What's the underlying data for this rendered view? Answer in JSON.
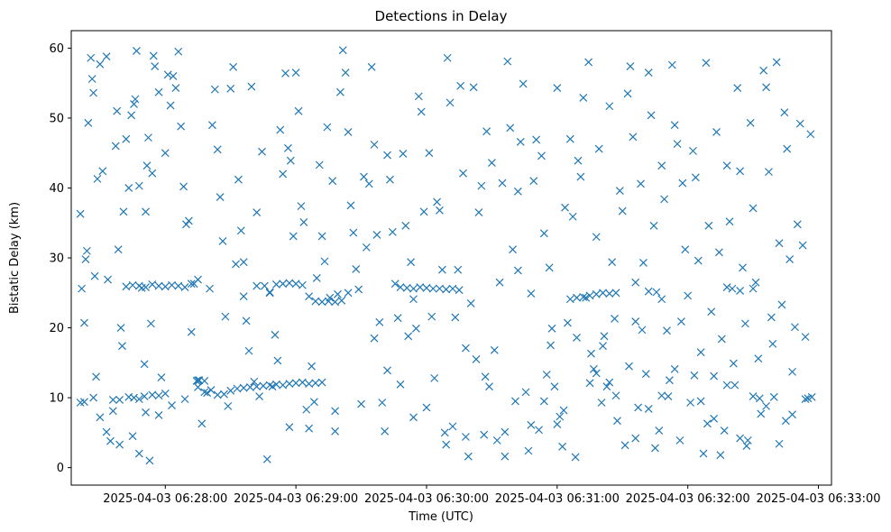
{
  "chart_data": {
    "type": "scatter",
    "title": "Detections in Delay",
    "xlabel": "Time (UTC)",
    "ylabel": "Bistatic Delay (km)",
    "marker": "x",
    "marker_color": "#1f77b4",
    "x_unit": "minutes after 2025-04-03 06:27:00 UTC",
    "xlim": [
      0.28,
      6.1
    ],
    "ylim": [
      -2.5,
      62.5
    ],
    "x_ticks": [
      {
        "value": 1,
        "label": "2025-04-03 06:28:00"
      },
      {
        "value": 2,
        "label": "2025-04-03 06:29:00"
      },
      {
        "value": 3,
        "label": "2025-04-03 06:30:00"
      },
      {
        "value": 4,
        "label": "2025-04-03 06:31:00"
      },
      {
        "value": 5,
        "label": "2025-04-03 06:32:00"
      },
      {
        "value": 6,
        "label": "2025-04-03 06:33:00"
      }
    ],
    "y_ticks": [
      {
        "value": 0,
        "label": "0"
      },
      {
        "value": 10,
        "label": "10"
      },
      {
        "value": 20,
        "label": "20"
      },
      {
        "value": 30,
        "label": "30"
      },
      {
        "value": 40,
        "label": "40"
      },
      {
        "value": 50,
        "label": "50"
      },
      {
        "value": 60,
        "label": "60"
      }
    ],
    "points": [
      [
        0.35,
        36.3
      ],
      [
        0.36,
        25.6
      ],
      [
        0.38,
        20.7
      ],
      [
        0.39,
        29.8
      ],
      [
        0.4,
        31
      ],
      [
        0.41,
        49.3
      ],
      [
        0.43,
        58.6
      ],
      [
        0.44,
        55.6
      ],
      [
        0.45,
        53.6
      ],
      [
        0.46,
        27.4
      ],
      [
        0.47,
        13
      ],
      [
        0.48,
        41.3
      ],
      [
        0.5,
        57.7
      ],
      [
        0.52,
        42.4
      ],
      [
        0.55,
        58.8
      ],
      [
        0.56,
        26.9
      ],
      [
        0.58,
        3.8
      ],
      [
        0.6,
        9.7
      ],
      [
        0.62,
        46
      ],
      [
        0.63,
        51
      ],
      [
        0.64,
        31.2
      ],
      [
        0.65,
        3.3
      ],
      [
        0.66,
        20
      ],
      [
        0.67,
        17.4
      ],
      [
        0.68,
        36.6
      ],
      [
        0.7,
        47
      ],
      [
        0.72,
        40
      ],
      [
        0.74,
        50.4
      ],
      [
        0.76,
        52
      ],
      [
        0.77,
        52.7
      ],
      [
        0.78,
        59.6
      ],
      [
        0.8,
        40.3
      ],
      [
        0.82,
        25.7
      ],
      [
        0.84,
        14.8
      ],
      [
        0.85,
        36.6
      ],
      [
        0.86,
        43.2
      ],
      [
        0.87,
        47.2
      ],
      [
        0.88,
        1
      ],
      [
        0.89,
        20.6
      ],
      [
        0.9,
        42.1
      ],
      [
        0.91,
        58.9
      ],
      [
        0.92,
        57.4
      ],
      [
        0.95,
        53.7
      ],
      [
        0.97,
        12.9
      ],
      [
        1.0,
        45
      ],
      [
        1.02,
        56.2
      ],
      [
        1.04,
        51.8
      ],
      [
        1.06,
        56
      ],
      [
        1.08,
        54.3
      ],
      [
        1.1,
        59.5
      ],
      [
        1.12,
        48.8
      ],
      [
        1.14,
        40.2
      ],
      [
        1.16,
        34.8
      ],
      [
        1.18,
        35.3
      ],
      [
        1.2,
        19.4
      ],
      [
        1.22,
        26.3
      ],
      [
        1.24,
        12.4
      ],
      [
        1.26,
        12.5
      ],
      [
        1.28,
        6.3
      ],
      [
        1.3,
        10.8
      ],
      [
        1.32,
        10.7
      ],
      [
        1.34,
        25.6
      ],
      [
        1.36,
        49
      ],
      [
        1.38,
        54.1
      ],
      [
        1.4,
        45.5
      ],
      [
        1.42,
        38.7
      ],
      [
        1.44,
        32.4
      ],
      [
        1.46,
        21.6
      ],
      [
        1.48,
        8.8
      ],
      [
        1.5,
        54.2
      ],
      [
        1.52,
        57.3
      ],
      [
        1.54,
        29.1
      ],
      [
        1.56,
        41.2
      ],
      [
        1.58,
        33.9
      ],
      [
        1.6,
        24.5
      ],
      [
        1.62,
        21
      ],
      [
        1.64,
        16.7
      ],
      [
        1.66,
        54.5
      ],
      [
        1.68,
        12.3
      ],
      [
        1.7,
        36.5
      ],
      [
        1.72,
        10.2
      ],
      [
        1.74,
        45.2
      ],
      [
        1.76,
        26
      ],
      [
        1.78,
        1.2
      ],
      [
        1.8,
        25.1
      ],
      [
        1.82,
        11.6
      ],
      [
        1.84,
        19
      ],
      [
        1.86,
        15.3
      ],
      [
        1.88,
        48.3
      ],
      [
        1.9,
        42
      ],
      [
        1.92,
        56.4
      ],
      [
        1.94,
        45.7
      ],
      [
        1.96,
        43.9
      ],
      [
        1.98,
        33.1
      ],
      [
        2.0,
        56.5
      ],
      [
        2.02,
        51
      ],
      [
        2.04,
        37.4
      ],
      [
        2.06,
        35.1
      ],
      [
        2.08,
        8.3
      ],
      [
        2.1,
        5.6
      ],
      [
        2.12,
        14.5
      ],
      [
        2.14,
        9.4
      ],
      [
        2.16,
        27.1
      ],
      [
        2.18,
        43.3
      ],
      [
        2.2,
        33.1
      ],
      [
        2.22,
        29.5
      ],
      [
        2.24,
        48.7
      ],
      [
        2.26,
        24.3
      ],
      [
        2.28,
        41
      ],
      [
        2.3,
        5.2
      ],
      [
        2.32,
        24.8
      ],
      [
        2.34,
        53.7
      ],
      [
        2.36,
        59.7
      ],
      [
        2.38,
        56.5
      ],
      [
        2.4,
        48
      ],
      [
        2.42,
        37.5
      ],
      [
        2.44,
        33.6
      ],
      [
        2.46,
        28.4
      ],
      [
        2.48,
        25.5
      ],
      [
        2.5,
        9.1
      ],
      [
        2.52,
        41.6
      ],
      [
        2.54,
        31.5
      ],
      [
        2.56,
        40.6
      ],
      [
        2.58,
        57.3
      ],
      [
        2.6,
        46.2
      ],
      [
        2.62,
        33.3
      ],
      [
        2.64,
        20.8
      ],
      [
        2.66,
        9.3
      ],
      [
        2.68,
        5.2
      ],
      [
        2.7,
        44.7
      ],
      [
        2.72,
        41.2
      ],
      [
        2.74,
        33.7
      ],
      [
        2.76,
        26.3
      ],
      [
        2.78,
        21.4
      ],
      [
        2.8,
        11.9
      ],
      [
        2.82,
        44.9
      ],
      [
        2.84,
        34.6
      ],
      [
        2.86,
        18.8
      ],
      [
        2.88,
        29.4
      ],
      [
        2.9,
        24.1
      ],
      [
        2.92,
        19.9
      ],
      [
        2.94,
        53.1
      ],
      [
        2.96,
        50.9
      ],
      [
        2.98,
        36.6
      ],
      [
        3.0,
        8.6
      ],
      [
        3.02,
        45
      ],
      [
        3.04,
        21.6
      ],
      [
        3.06,
        12.8
      ],
      [
        3.08,
        38
      ],
      [
        3.1,
        36.8
      ],
      [
        3.12,
        28.3
      ],
      [
        3.14,
        5
      ],
      [
        3.16,
        58.6
      ],
      [
        3.18,
        52.2
      ],
      [
        3.2,
        5.9
      ],
      [
        3.22,
        21.5
      ],
      [
        3.24,
        28.3
      ],
      [
        3.26,
        54.6
      ],
      [
        3.28,
        42.1
      ],
      [
        3.3,
        4.4
      ],
      [
        3.32,
        1.6
      ],
      [
        3.34,
        23.5
      ],
      [
        3.36,
        54.4
      ],
      [
        3.38,
        15.5
      ],
      [
        3.4,
        36.5
      ],
      [
        3.42,
        40.3
      ],
      [
        3.44,
        4.7
      ],
      [
        3.46,
        48.1
      ],
      [
        3.48,
        11.6
      ],
      [
        3.5,
        43.6
      ],
      [
        3.52,
        16.8
      ],
      [
        3.54,
        3.9
      ],
      [
        3.56,
        26.5
      ],
      [
        3.58,
        40.7
      ],
      [
        3.6,
        5.1
      ],
      [
        3.62,
        58.1
      ],
      [
        3.64,
        48.6
      ],
      [
        3.66,
        31.2
      ],
      [
        3.68,
        9.5
      ],
      [
        3.7,
        39.5
      ],
      [
        3.72,
        46.6
      ],
      [
        3.74,
        54.9
      ],
      [
        3.76,
        10.8
      ],
      [
        3.78,
        2.4
      ],
      [
        3.8,
        24.9
      ],
      [
        3.82,
        41
      ],
      [
        3.84,
        46.9
      ],
      [
        3.86,
        5.4
      ],
      [
        3.88,
        44.6
      ],
      [
        3.9,
        33.5
      ],
      [
        3.92,
        13.3
      ],
      [
        3.94,
        28.6
      ],
      [
        3.96,
        19.9
      ],
      [
        3.98,
        11.6
      ],
      [
        4.0,
        54.3
      ],
      [
        4.02,
        7.3
      ],
      [
        4.04,
        3
      ],
      [
        4.06,
        37.2
      ],
      [
        4.08,
        20.7
      ],
      [
        4.1,
        47
      ],
      [
        4.12,
        35.9
      ],
      [
        4.14,
        1.5
      ],
      [
        4.16,
        43.9
      ],
      [
        4.18,
        41.6
      ],
      [
        4.2,
        52.9
      ],
      [
        4.22,
        24.3
      ],
      [
        4.24,
        58
      ],
      [
        4.26,
        16.3
      ],
      [
        4.28,
        14.1
      ],
      [
        4.3,
        33
      ],
      [
        4.32,
        45.6
      ],
      [
        4.34,
        9.3
      ],
      [
        4.36,
        18.8
      ],
      [
        4.38,
        11.6
      ],
      [
        4.4,
        51.7
      ],
      [
        4.42,
        29.4
      ],
      [
        4.44,
        21.3
      ],
      [
        4.46,
        6.7
      ],
      [
        4.48,
        39.6
      ],
      [
        4.5,
        36.7
      ],
      [
        4.52,
        3.2
      ],
      [
        4.54,
        53.5
      ],
      [
        4.56,
        57.4
      ],
      [
        4.58,
        47.3
      ],
      [
        4.6,
        20.9
      ],
      [
        4.62,
        8.6
      ],
      [
        4.64,
        40.6
      ],
      [
        4.66,
        29.3
      ],
      [
        4.68,
        13.4
      ],
      [
        4.7,
        56.5
      ],
      [
        4.72,
        50.4
      ],
      [
        4.74,
        34.6
      ],
      [
        4.76,
        25.1
      ],
      [
        4.78,
        5.3
      ],
      [
        4.8,
        43.2
      ],
      [
        4.82,
        38.4
      ],
      [
        4.84,
        19.6
      ],
      [
        4.86,
        12.5
      ],
      [
        4.88,
        57.6
      ],
      [
        4.9,
        49
      ],
      [
        4.92,
        46.3
      ],
      [
        4.94,
        3.9
      ],
      [
        4.96,
        40.7
      ],
      [
        4.98,
        31.2
      ],
      [
        5.0,
        24.6
      ],
      [
        5.02,
        9.3
      ],
      [
        5.04,
        45.3
      ],
      [
        5.06,
        41.5
      ],
      [
        5.08,
        29.6
      ],
      [
        5.1,
        16.5
      ],
      [
        5.12,
        2
      ],
      [
        5.14,
        57.9
      ],
      [
        5.16,
        34.6
      ],
      [
        5.18,
        22.3
      ],
      [
        5.2,
        13.1
      ],
      [
        5.22,
        48
      ],
      [
        5.24,
        30.8
      ],
      [
        5.26,
        18.4
      ],
      [
        5.28,
        5.3
      ],
      [
        5.3,
        43.2
      ],
      [
        5.32,
        35.2
      ],
      [
        5.34,
        25.6
      ],
      [
        5.36,
        11.8
      ],
      [
        5.38,
        54.3
      ],
      [
        5.4,
        42.4
      ],
      [
        5.42,
        28.6
      ],
      [
        5.44,
        20.6
      ],
      [
        5.46,
        3.9
      ],
      [
        5.48,
        49.3
      ],
      [
        5.5,
        37.1
      ],
      [
        5.52,
        26.5
      ],
      [
        5.54,
        15.6
      ],
      [
        5.56,
        7.7
      ],
      [
        5.58,
        56.8
      ],
      [
        5.6,
        54.4
      ],
      [
        5.62,
        42.3
      ],
      [
        5.64,
        21.5
      ],
      [
        5.66,
        10.1
      ],
      [
        5.68,
        58
      ],
      [
        5.7,
        32.1
      ],
      [
        5.72,
        23.3
      ],
      [
        5.74,
        50.8
      ],
      [
        5.76,
        45.6
      ],
      [
        5.78,
        29.8
      ],
      [
        5.8,
        13.7
      ],
      [
        5.82,
        20.1
      ],
      [
        5.84,
        34.8
      ],
      [
        5.86,
        49.2
      ],
      [
        5.88,
        31.8
      ],
      [
        5.9,
        18.7
      ],
      [
        5.92,
        9.9
      ],
      [
        5.94,
        47.7
      ],
      [
        0.7,
        25.9
      ],
      [
        0.75,
        26.1
      ],
      [
        0.8,
        26
      ],
      [
        0.85,
        25.8
      ],
      [
        0.9,
        26.2
      ],
      [
        0.95,
        26
      ],
      [
        1.0,
        25.9
      ],
      [
        1.05,
        26.1
      ],
      [
        1.1,
        26
      ],
      [
        1.15,
        25.8
      ],
      [
        1.2,
        26.3
      ],
      [
        1.25,
        26.9
      ],
      [
        0.72,
        10.1
      ],
      [
        0.76,
        10
      ],
      [
        0.8,
        9.8
      ],
      [
        0.84,
        10.2
      ],
      [
        0.9,
        10.4
      ],
      [
        0.95,
        10.3
      ],
      [
        1.0,
        10.6
      ],
      [
        1.25,
        12.5
      ],
      [
        1.3,
        12.4
      ],
      [
        1.35,
        11.1
      ],
      [
        1.4,
        10.4
      ],
      [
        1.45,
        10.5
      ],
      [
        1.5,
        11
      ],
      [
        1.55,
        11.3
      ],
      [
        1.6,
        11.4
      ],
      [
        1.65,
        11.5
      ],
      [
        1.7,
        11.6
      ],
      [
        1.75,
        11.7
      ],
      [
        1.8,
        11.8
      ],
      [
        1.85,
        11.9
      ],
      [
        1.9,
        11.8
      ],
      [
        1.95,
        12
      ],
      [
        2.0,
        12.1
      ],
      [
        2.05,
        12.2
      ],
      [
        2.1,
        12
      ],
      [
        2.15,
        12.1
      ],
      [
        2.2,
        12.2
      ],
      [
        1.6,
        29.4
      ],
      [
        1.7,
        26
      ],
      [
        1.8,
        25
      ],
      [
        1.85,
        26.2
      ],
      [
        1.9,
        26.3
      ],
      [
        1.95,
        26.4
      ],
      [
        2.0,
        26.3
      ],
      [
        2.05,
        26.1
      ],
      [
        2.1,
        24.5
      ],
      [
        2.15,
        23.8
      ],
      [
        2.2,
        23.7
      ],
      [
        2.25,
        23.8
      ],
      [
        2.3,
        23.7
      ],
      [
        2.35,
        23.9
      ],
      [
        2.4,
        25
      ],
      [
        2.8,
        25.8
      ],
      [
        2.85,
        25.7
      ],
      [
        2.9,
        25.6
      ],
      [
        2.95,
        25.8
      ],
      [
        3.0,
        25.7
      ],
      [
        3.05,
        25.6
      ],
      [
        3.1,
        25.6
      ],
      [
        3.15,
        25.5
      ],
      [
        3.2,
        25.6
      ],
      [
        3.25,
        25.4
      ],
      [
        4.1,
        24.1
      ],
      [
        4.15,
        24.3
      ],
      [
        4.2,
        24.4
      ],
      [
        4.25,
        24.6
      ],
      [
        4.3,
        24.8
      ],
      [
        4.35,
        25
      ],
      [
        4.4,
        24.9
      ],
      [
        4.45,
        25
      ],
      [
        4.6,
        26.5
      ],
      [
        4.7,
        25.2
      ],
      [
        4.8,
        24.1
      ],
      [
        5.3,
        25.8
      ],
      [
        5.4,
        25.3
      ],
      [
        5.5,
        25.6
      ],
      [
        0.35,
        9.3
      ],
      [
        0.38,
        9.4
      ],
      [
        0.45,
        10
      ],
      [
        0.5,
        7.2
      ],
      [
        0.55,
        5.1
      ],
      [
        0.6,
        8.1
      ],
      [
        0.65,
        9.7
      ],
      [
        0.75,
        4.5
      ],
      [
        0.85,
        7.9
      ],
      [
        0.95,
        7.5
      ],
      [
        1.05,
        8.9
      ],
      [
        1.15,
        9.8
      ],
      [
        1.25,
        11.5
      ],
      [
        3.8,
        6.1
      ],
      [
        3.9,
        9.5
      ],
      [
        4.0,
        6.2
      ],
      [
        4.05,
        8.2
      ],
      [
        4.3,
        13.5
      ],
      [
        4.4,
        12.2
      ],
      [
        4.6,
        4.2
      ],
      [
        4.7,
        8.4
      ],
      [
        4.8,
        10.3
      ],
      [
        4.9,
        14.1
      ],
      [
        5.1,
        9.5
      ],
      [
        5.2,
        7
      ],
      [
        5.3,
        11.8
      ],
      [
        5.4,
        4.2
      ],
      [
        5.5,
        10.2
      ],
      [
        5.6,
        8.8
      ],
      [
        5.7,
        3.4
      ],
      [
        5.8,
        7.6
      ],
      [
        5.9,
        9.8
      ],
      [
        5.95,
        10.1
      ],
      [
        0.8,
        2
      ],
      [
        1.95,
        5.8
      ],
      [
        2.3,
        8.1
      ],
      [
        2.6,
        18.5
      ],
      [
        2.7,
        13.9
      ],
      [
        2.9,
        7.2
      ],
      [
        3.15,
        3.3
      ],
      [
        3.3,
        17.1
      ],
      [
        3.45,
        13
      ],
      [
        3.6,
        1.6
      ],
      [
        3.7,
        28.2
      ],
      [
        3.95,
        17.5
      ],
      [
        4.15,
        18.6
      ],
      [
        4.25,
        12.1
      ],
      [
        4.35,
        17.4
      ],
      [
        4.45,
        10.3
      ],
      [
        4.55,
        14.5
      ],
      [
        4.65,
        19.7
      ],
      [
        4.75,
        2.8
      ],
      [
        4.85,
        10.2
      ],
      [
        4.95,
        20.9
      ],
      [
        5.05,
        13.2
      ],
      [
        5.15,
        6.3
      ],
      [
        5.25,
        1.8
      ],
      [
        5.35,
        14.9
      ],
      [
        5.45,
        3.1
      ],
      [
        5.55,
        9.9
      ],
      [
        5.65,
        17.7
      ],
      [
        5.75,
        6.7
      ]
    ]
  }
}
